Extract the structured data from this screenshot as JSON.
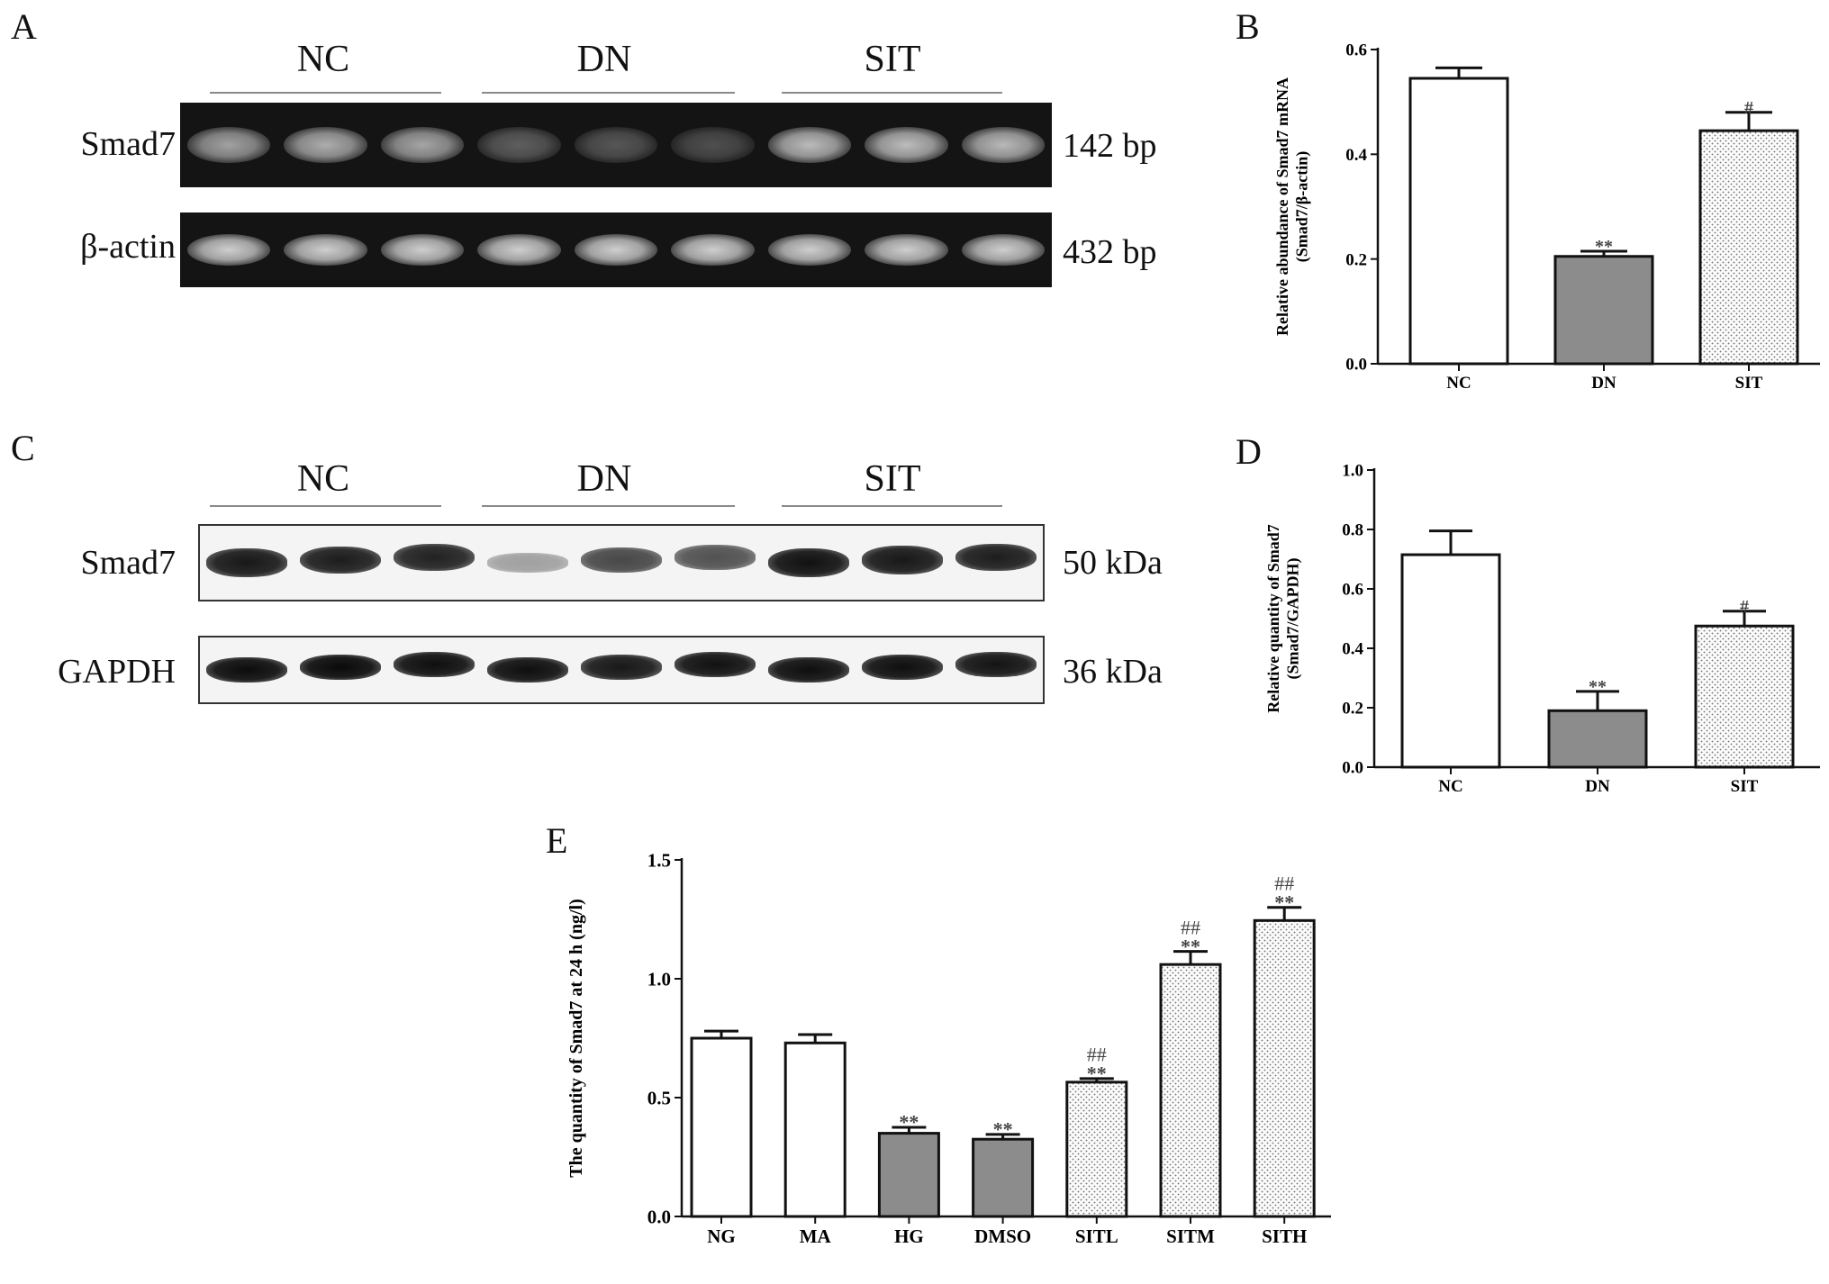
{
  "panel_letters": [
    "A",
    "B",
    "C",
    "D",
    "E"
  ],
  "gel_a": {
    "groups": [
      "NC",
      "DN",
      "SIT"
    ],
    "rows": [
      {
        "label": "Smad7",
        "size": "142 bp",
        "intensities": [
          0.72,
          0.78,
          0.74,
          0.38,
          0.34,
          0.3,
          0.85,
          0.86,
          0.84
        ]
      },
      {
        "label": "β-actin",
        "size": "432 bp",
        "intensities": [
          0.95,
          0.95,
          0.95,
          0.95,
          0.95,
          0.95,
          0.95,
          0.95,
          0.95
        ]
      }
    ]
  },
  "blot_c": {
    "groups": [
      "NC",
      "DN",
      "SIT"
    ],
    "rows": [
      {
        "label": "Smad7",
        "size": "50 kDa",
        "intensities": [
          0.92,
          0.9,
          0.88,
          0.35,
          0.72,
          0.68,
          0.95,
          0.92,
          0.9
        ]
      },
      {
        "label": "GAPDH",
        "size": "36 kDa",
        "intensities": [
          0.97,
          0.98,
          0.96,
          0.96,
          0.92,
          0.95,
          0.96,
          0.96,
          0.94
        ]
      }
    ]
  },
  "chart_data": [
    {
      "type": "bar",
      "panel": "B",
      "categories": [
        "NC",
        "DN",
        "SIT"
      ],
      "values": [
        0.545,
        0.205,
        0.445
      ],
      "errors": [
        0.02,
        0.01,
        0.035
      ],
      "annotations": [
        "",
        "**",
        "#"
      ],
      "fills": [
        "white",
        "gray",
        "dotted"
      ],
      "ylabel": "Relative abundance of Smad7 mRNA",
      "ylabel2": "(Smad7/β-actin)",
      "ylim": [
        0,
        0.6
      ],
      "yticks": [
        "0.0",
        "0.2",
        "0.4",
        "0.6"
      ]
    },
    {
      "type": "bar",
      "panel": "D",
      "categories": [
        "NC",
        "DN",
        "SIT"
      ],
      "values": [
        0.715,
        0.19,
        0.475
      ],
      "errors": [
        0.08,
        0.065,
        0.05
      ],
      "annotations": [
        "",
        "**",
        "#"
      ],
      "fills": [
        "white",
        "gray",
        "dotted"
      ],
      "ylabel": "Relative quantity of Smad7",
      "ylabel2": "(Smad7/GAPDH)",
      "ylim": [
        0,
        1.0
      ],
      "yticks": [
        "0.0",
        "0.2",
        "0.4",
        "0.6",
        "0.8",
        "1.0"
      ]
    },
    {
      "type": "bar",
      "panel": "E",
      "categories": [
        "NG",
        "MA",
        "HG",
        "DMSO",
        "SITL",
        "SITM",
        "SITH"
      ],
      "values": [
        0.75,
        0.73,
        0.35,
        0.325,
        0.565,
        1.06,
        1.245
      ],
      "errors": [
        0.03,
        0.035,
        0.025,
        0.02,
        0.015,
        0.055,
        0.055
      ],
      "annotations_top": [
        "",
        "",
        "",
        "",
        "##",
        "##",
        "##"
      ],
      "annotations": [
        "",
        "",
        "**",
        "**",
        "**",
        "**",
        "**"
      ],
      "fills": [
        "white",
        "white",
        "gray",
        "gray",
        "dotted",
        "dotted",
        "dotted"
      ],
      "ylabel": "The quantity of Smad7 at 24 h (ng/l)",
      "ylim": [
        0,
        1.5
      ],
      "yticks": [
        "0.0",
        "0.5",
        "1.0",
        "1.5"
      ]
    }
  ],
  "colors": {
    "gray": "#8c8c8c",
    "dotted_bg": "#fbfbfb",
    "dot": "#6e6e6e",
    "axis": "#111111"
  }
}
